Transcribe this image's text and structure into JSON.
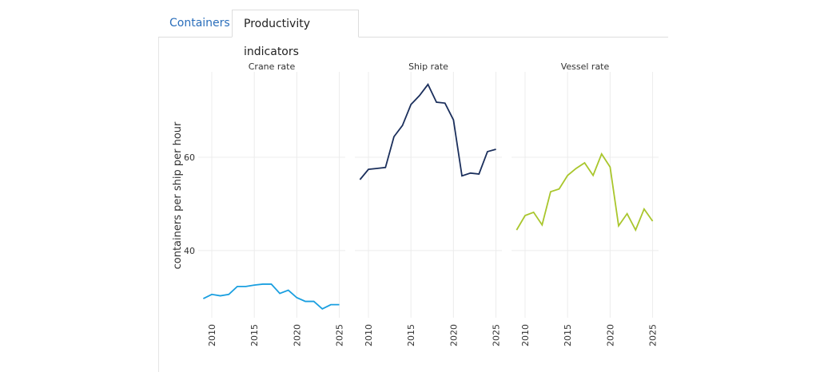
{
  "tabs": [
    "Containers",
    "Productivity indicators"
  ],
  "chart_data": [
    {
      "type": "line",
      "title": "Crane rate",
      "y_label": "containers per ship per hour",
      "x": [
        2009,
        2010,
        2011,
        2012,
        2013,
        2014,
        2015,
        2016,
        2017,
        2018,
        2019,
        2020,
        2021,
        2022,
        2023,
        2024,
        2025
      ],
      "values": [
        29.7,
        30.6,
        30.3,
        30.6,
        32.3,
        32.3,
        32.6,
        32.8,
        32.8,
        30.8,
        31.5,
        29.9,
        29.1,
        29.1,
        27.5,
        28.4,
        28.4
      ],
      "color": "#1a9fe0",
      "xlim": [
        2008.4,
        2025.7
      ],
      "xticks": [
        2010,
        2015,
        2020,
        2025
      ],
      "ylim": [
        25.6,
        78.3
      ],
      "yticks": [
        40,
        60
      ],
      "grid": true
    },
    {
      "type": "line",
      "title": "Ship rate",
      "x": [
        2009,
        2010,
        2011,
        2012,
        2013,
        2014,
        2015,
        2016,
        2017,
        2018,
        2019,
        2020,
        2021,
        2022,
        2023,
        2024,
        2025
      ],
      "values": [
        55.2,
        57.4,
        57.6,
        57.8,
        64.4,
        66.8,
        71.3,
        73.2,
        75.6,
        71.8,
        71.6,
        68.0,
        56.0,
        56.6,
        56.4,
        61.2,
        61.7
      ],
      "color": "#1b2f5c",
      "xlim": [
        2008.4,
        2025.7
      ],
      "xticks": [
        2010,
        2015,
        2020,
        2025
      ],
      "ylim": [
        25.6,
        78.3
      ],
      "yticks": [
        40,
        60
      ],
      "grid": true
    },
    {
      "type": "line",
      "title": "Vessel rate",
      "x": [
        2009,
        2010,
        2011,
        2012,
        2013,
        2014,
        2015,
        2016,
        2017,
        2018,
        2019,
        2020,
        2021,
        2022,
        2023,
        2024,
        2025
      ],
      "values": [
        44.4,
        47.5,
        48.2,
        45.5,
        52.6,
        53.2,
        56.1,
        57.6,
        58.8,
        56.1,
        60.7,
        57.9,
        45.3,
        47.9,
        44.4,
        48.9,
        46.3
      ],
      "color": "#a9c62c",
      "xlim": [
        2008.4,
        2025.7
      ],
      "xticks": [
        2010,
        2015,
        2020,
        2025
      ],
      "ylim": [
        25.6,
        78.3
      ],
      "yticks": [
        40,
        60
      ],
      "grid": true
    }
  ]
}
